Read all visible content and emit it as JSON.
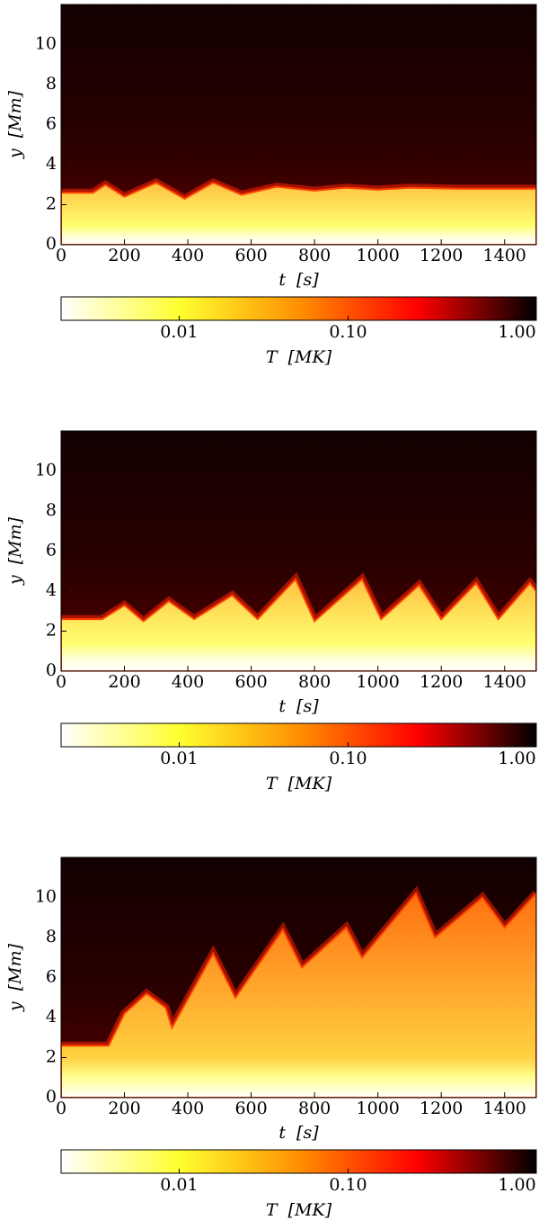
{
  "chart_data": [
    {
      "type": "heatmap",
      "xlabel": "t  [s]",
      "ylabel": "y  [Mm]",
      "x": [
        0,
        100,
        140,
        200,
        300,
        390,
        480,
        570,
        680,
        800,
        900,
        1000,
        1100,
        1250,
        1400,
        1500
      ],
      "values": [
        2.6,
        2.6,
        3.0,
        2.4,
        3.1,
        2.3,
        3.1,
        2.5,
        2.9,
        2.7,
        2.85,
        2.75,
        2.85,
        2.8,
        2.8,
        2.8
      ],
      "xlim": [
        0,
        1500
      ],
      "ylim": [
        0,
        12
      ],
      "xticks": [
        0,
        200,
        400,
        600,
        800,
        1000,
        1200,
        1400
      ],
      "yticks": [
        0,
        2,
        4,
        6,
        8,
        10
      ],
      "colorbar": {
        "label": "T  [MK]",
        "scale": "log",
        "clim": [
          0.002,
          1.3
        ],
        "ticks": [
          0.01,
          {
            "value": 0.1,
            "label": "0.10"
          },
          {
            "value": 1,
            "label": "1.00"
          }
        ],
        "colormap": [
          "#ffffff",
          "#ffff30",
          "#ff9000",
          "#ff0000",
          "#000000"
        ]
      }
    },
    {
      "type": "heatmap",
      "xlabel": "t  [s]",
      "ylabel": "y  [Mm]",
      "x": [
        0,
        100,
        130,
        200,
        260,
        340,
        420,
        540,
        620,
        740,
        800,
        950,
        1010,
        1130,
        1200,
        1310,
        1380,
        1480,
        1500
      ],
      "values": [
        2.6,
        2.6,
        2.6,
        3.3,
        2.5,
        3.5,
        2.6,
        3.8,
        2.6,
        4.6,
        2.5,
        4.6,
        2.6,
        4.3,
        2.6,
        4.4,
        2.6,
        4.4,
        4.0
      ],
      "xlim": [
        0,
        1500
      ],
      "ylim": [
        0,
        12
      ],
      "xticks": [
        0,
        200,
        400,
        600,
        800,
        1000,
        1200,
        1400
      ],
      "yticks": [
        0,
        2,
        4,
        6,
        8,
        10
      ],
      "colorbar": {
        "label": "T  [MK]",
        "scale": "log",
        "clim": [
          0.002,
          1.3
        ],
        "ticks": [
          0.01,
          {
            "value": 0.1,
            "label": "0.10"
          },
          {
            "value": 1,
            "label": "1.00"
          }
        ],
        "colormap": [
          "#ffffff",
          "#ffff30",
          "#ff9000",
          "#ff0000",
          "#000000"
        ]
      }
    },
    {
      "type": "heatmap",
      "xlabel": "t  [s]",
      "ylabel": "y  [Mm]",
      "x": [
        0,
        150,
        200,
        270,
        330,
        350,
        480,
        550,
        700,
        760,
        900,
        950,
        1120,
        1180,
        1330,
        1400,
        1500
      ],
      "values": [
        2.6,
        2.6,
        4.2,
        5.2,
        4.5,
        3.5,
        7.2,
        5.0,
        8.4,
        6.5,
        8.5,
        7.0,
        10.2,
        8.0,
        10.0,
        8.5,
        10.2
      ],
      "xlim": [
        0,
        1500
      ],
      "ylim": [
        0,
        12
      ],
      "xticks": [
        0,
        200,
        400,
        600,
        800,
        1000,
        1200,
        1400
      ],
      "yticks": [
        0,
        2,
        4,
        6,
        8,
        10
      ],
      "colorbar": {
        "label": "T  [MK]",
        "scale": "log",
        "clim": [
          0.002,
          1.3
        ],
        "ticks": [
          0.01,
          {
            "value": 0.1,
            "label": "0.10"
          },
          {
            "value": 1,
            "label": "1.00"
          }
        ],
        "colormap": [
          "#ffffff",
          "#ffff30",
          "#ff9000",
          "#ff0000",
          "#000000"
        ]
      }
    }
  ]
}
